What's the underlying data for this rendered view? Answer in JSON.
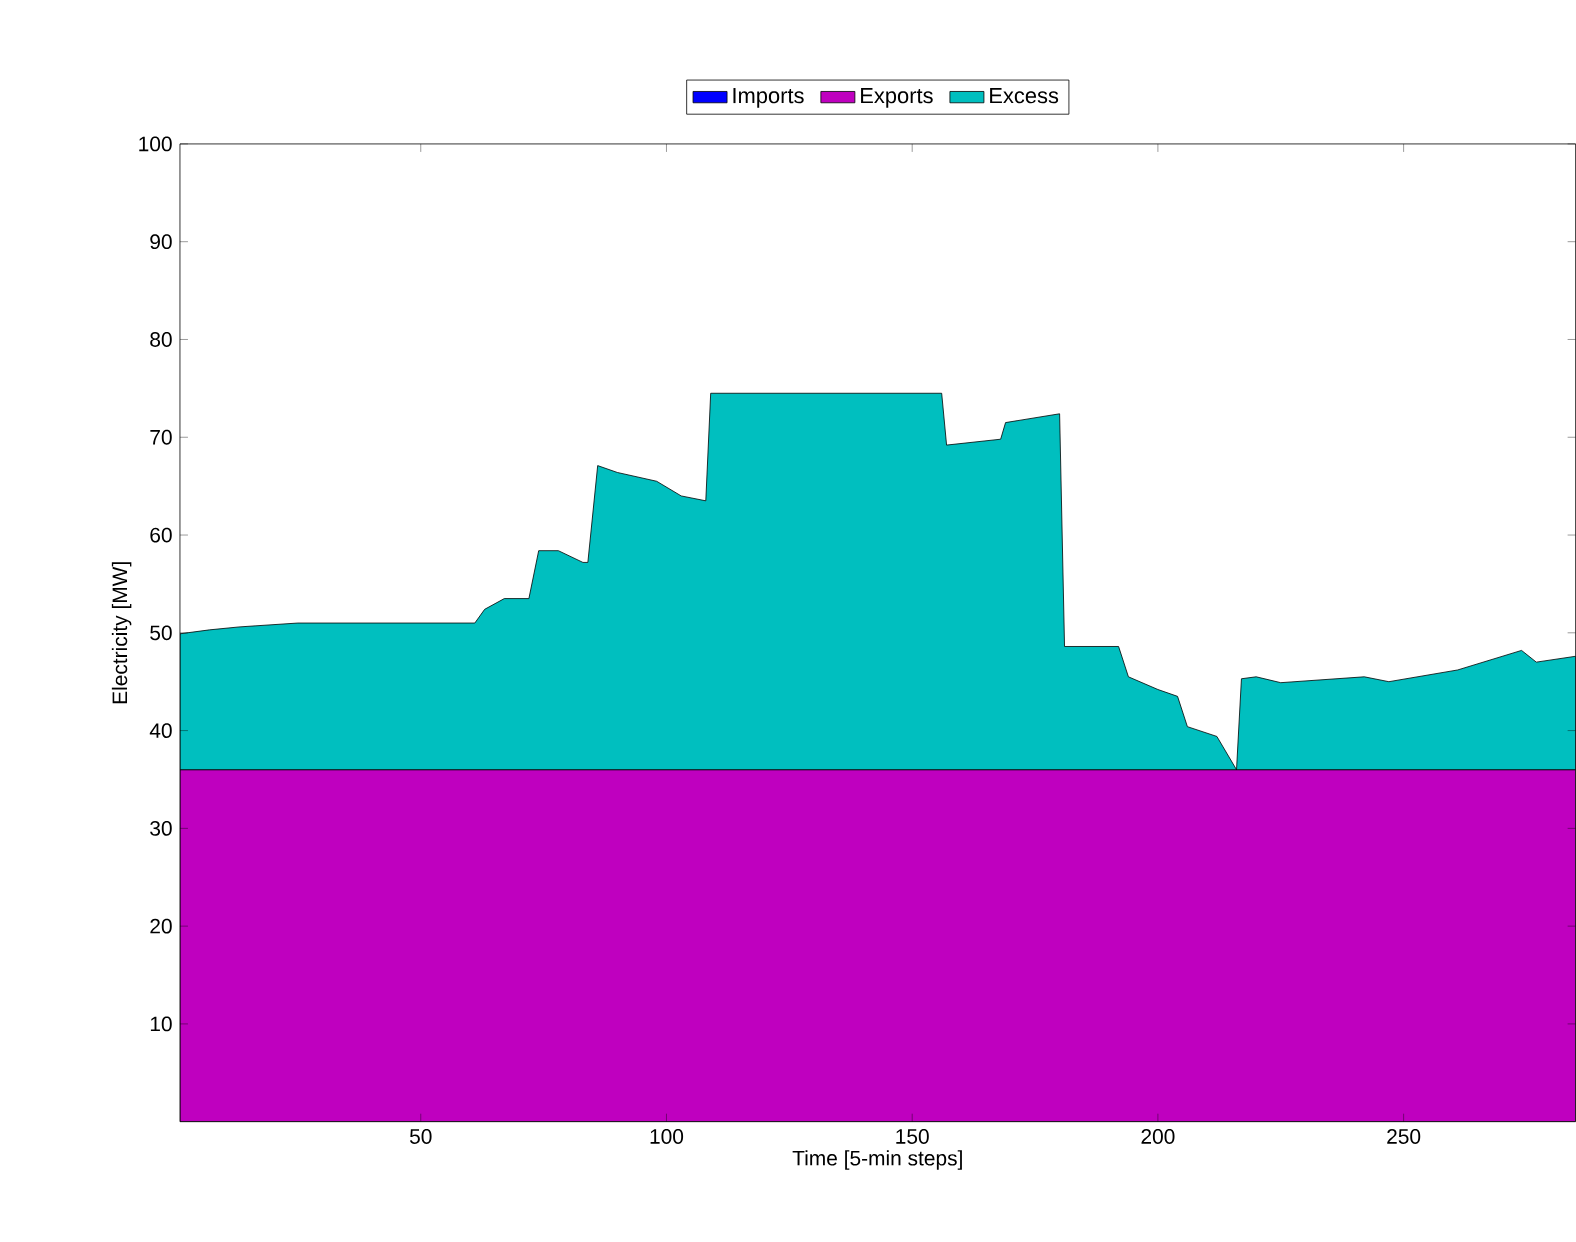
{
  "chart_data": {
    "type": "area",
    "stacked": true,
    "xlabel": "Time [5-min steps]",
    "ylabel": "Electricity [MW]",
    "x": [
      1,
      7,
      13,
      25,
      61,
      63,
      67,
      72,
      74,
      78,
      83,
      84,
      86,
      90,
      98,
      103,
      108,
      109,
      156,
      157,
      168,
      169,
      180,
      181,
      192,
      194,
      200,
      204,
      206,
      212,
      216,
      217,
      220,
      225,
      242,
      247,
      261,
      274,
      277,
      285
    ],
    "series": [
      {
        "name": "Imports",
        "color": "#0000ff",
        "values": [
          null,
          null,
          null,
          null,
          null,
          null,
          null,
          null,
          null,
          null,
          null,
          null,
          null,
          null,
          null,
          null,
          null,
          null,
          null,
          null,
          null,
          null,
          null,
          null,
          null,
          null,
          null,
          null,
          null,
          null,
          null,
          null,
          null,
          null,
          null,
          null,
          null,
          null,
          null,
          null
        ]
      },
      {
        "name": "Exports",
        "color": "#bf00bf",
        "values": [
          36,
          36,
          36,
          36,
          36,
          36,
          36,
          36,
          36,
          36,
          36,
          36,
          36,
          36,
          36,
          36,
          36,
          36,
          36,
          36,
          36,
          36,
          36,
          36,
          36,
          36,
          36,
          36,
          36,
          36,
          36,
          36,
          36,
          36,
          36,
          36,
          36,
          36,
          36,
          36
        ]
      },
      {
        "name": "Excess",
        "color": "#00bfbf",
        "values": [
          13.9,
          14.3,
          14.6,
          15,
          15,
          16.4,
          17.5,
          17.5,
          22.4,
          22.4,
          21.2,
          21.2,
          31.1,
          30.4,
          29.5,
          28,
          27.5,
          38.5,
          38.5,
          33.2,
          33.8,
          35.5,
          36.4,
          12.6,
          12.6,
          9.5,
          8.2,
          7.5,
          4.4,
          3.4,
          0,
          9.3,
          9.5,
          8.9,
          9.5,
          9,
          10.2,
          12.2,
          11,
          11.6
        ]
      }
    ],
    "xlim": [
      1,
      285
    ],
    "ylim": [
      0,
      100
    ],
    "xticks": [
      50,
      100,
      150,
      200,
      250
    ],
    "yticks": [
      10,
      20,
      30,
      40,
      50,
      60,
      70,
      80,
      90,
      100
    ],
    "legend": "top"
  }
}
